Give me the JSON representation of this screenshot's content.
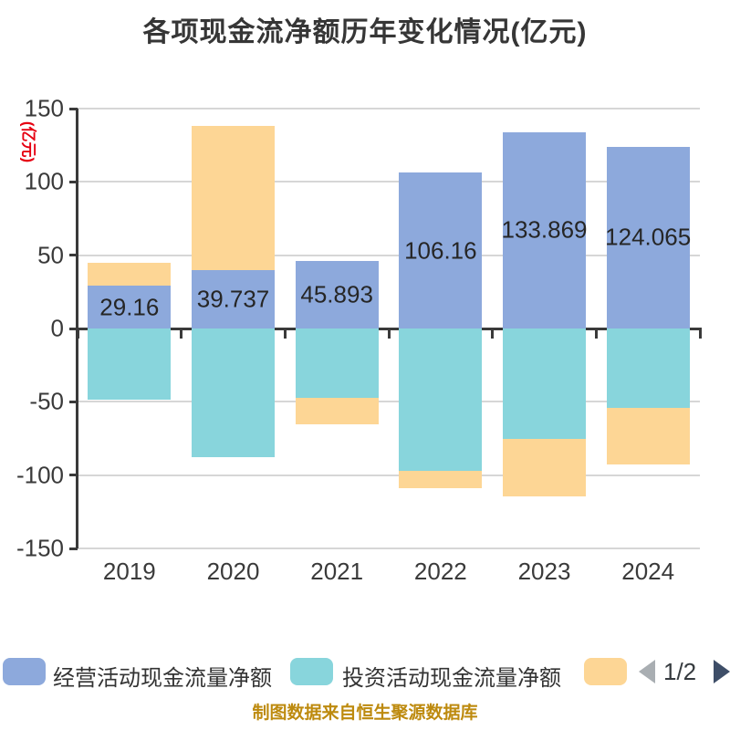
{
  "title": "各项现金流净额历年变化情况(亿元)",
  "footer": "制图数据来自恒生聚源数据库",
  "y_axis": {
    "unit_label": "(亿元)",
    "unit_label_color": "#e60012",
    "ticks": [
      "150",
      "100",
      "50",
      "0",
      "-50",
      "-100",
      "-150"
    ]
  },
  "x_axis": {
    "categories": [
      "2019",
      "2020",
      "2021",
      "2022",
      "2023",
      "2024"
    ]
  },
  "legend": {
    "items": [
      {
        "label": "经营活动现金流量净额",
        "color": "#8DA9DC",
        "label_visible": true
      },
      {
        "label": "投资活动现金流量净额",
        "color": "#88D5DC",
        "label_visible": true
      },
      {
        "label": "",
        "color": "#FDD695",
        "label_visible": false
      }
    ],
    "pagination": {
      "text": "1/2",
      "prev_color": "#A9AEB2",
      "next_color": "#3E4E68"
    }
  },
  "colors": {
    "grid": "#d6d6d6",
    "axis": "#3a3a3a",
    "footer_text": "#bd8a0e",
    "title_text": "#363636"
  },
  "chart_data": {
    "type": "bar",
    "stacked": true,
    "title": "各项现金流净额历年变化情况(亿元)",
    "categories": [
      "2019",
      "2020",
      "2021",
      "2022",
      "2023",
      "2024"
    ],
    "series": [
      {
        "name": "经营活动现金流量净额",
        "color": "#8DA9DC",
        "values": [
          29.16,
          39.737,
          45.893,
          106.16,
          133.869,
          124.065
        ],
        "labels": [
          "29.16",
          "39.737",
          "45.893",
          "106.16",
          "133.869",
          "124.065"
        ],
        "estimated": false
      },
      {
        "name": "投资活动现金流量净额",
        "color": "#88D5DC",
        "values": [
          -48.4,
          -87.6,
          -47.1,
          -96.9,
          -75.1,
          -54.0
        ],
        "estimated": true
      },
      {
        "name": "",
        "color": "#FDD695",
        "values": [
          15.8,
          98.6,
          -18.1,
          -11.8,
          -39.2,
          -38.5
        ],
        "estimated": true
      }
    ],
    "ylim": [
      -150,
      150
    ],
    "y_step": 50,
    "grid": true,
    "legend_position": "bottom",
    "ylabel": "(亿元)"
  }
}
